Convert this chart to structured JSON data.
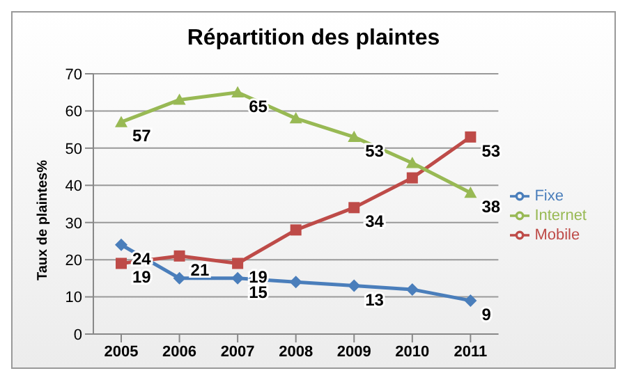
{
  "chart_data": {
    "type": "line",
    "title": "Répartition des plaintes",
    "ylabel": "Taux de plaintes%",
    "categories": [
      "2005",
      "2006",
      "2007",
      "2008",
      "2009",
      "2010",
      "2011"
    ],
    "series": [
      {
        "name": "Fixe",
        "color": "#4a7ebb",
        "marker": "diamond",
        "values": [
          24,
          15,
          15,
          14,
          13,
          12,
          9
        ],
        "value_labels": [
          "24",
          null,
          "15",
          null,
          "13",
          null,
          "9"
        ]
      },
      {
        "name": "Mobile",
        "color": "#be4b48",
        "marker": "square",
        "values": [
          19,
          21,
          19,
          28,
          34,
          42,
          53
        ],
        "value_labels": [
          "19",
          "21",
          "19",
          null,
          "34",
          null,
          "53"
        ]
      },
      {
        "name": "Internet",
        "color": "#98b954",
        "marker": "triangle",
        "values": [
          57,
          63,
          65,
          58,
          53,
          46,
          38
        ],
        "value_labels": [
          "57",
          null,
          "65",
          null,
          "53",
          null,
          "38"
        ]
      }
    ],
    "ylim": [
      0,
      70
    ],
    "yticks": [
      0,
      10,
      20,
      30,
      40,
      50,
      60,
      70
    ],
    "grid": "y",
    "legend": "right"
  }
}
